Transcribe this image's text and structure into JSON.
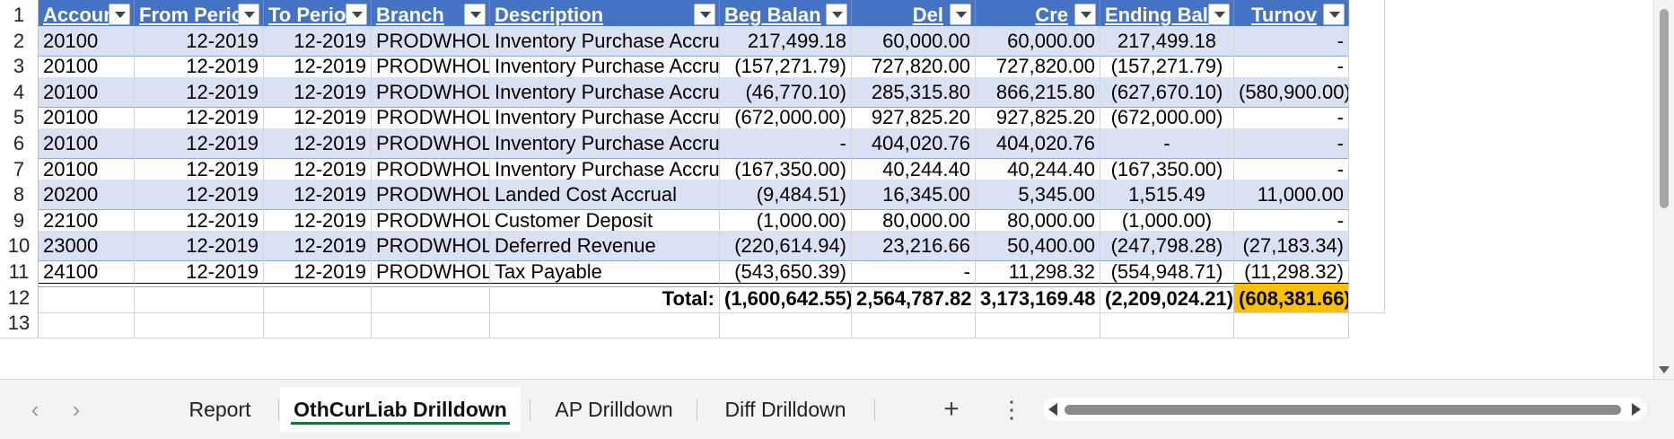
{
  "sheet": {
    "headers": [
      "Account",
      "From Period",
      "To Period",
      "Branch",
      "Description",
      "Beg Balan",
      "Del",
      "Cre",
      "Ending Balan",
      "Turnov"
    ],
    "rows": [
      {
        "num": "2",
        "account": "20100",
        "from": "12-2019",
        "to": "12-2019",
        "branch": "PRODWHOLE",
        "desc": "Inventory Purchase Accrual",
        "beg": "217,499.18",
        "debit": "60,000.00",
        "credit": "60,000.00",
        "ending": "217,499.18",
        "turnover": "-"
      },
      {
        "num": "3",
        "account": "20100",
        "from": "12-2019",
        "to": "12-2019",
        "branch": "PRODWHOLE",
        "desc": "Inventory Purchase Accrual",
        "beg": "(157,271.79)",
        "debit": "727,820.00",
        "credit": "727,820.00",
        "ending": "(157,271.79)",
        "turnover": "-"
      },
      {
        "num": "4",
        "account": "20100",
        "from": "12-2019",
        "to": "12-2019",
        "branch": "PRODWHOLE",
        "desc": "Inventory Purchase Accrual",
        "beg": "(46,770.10)",
        "debit": "285,315.80",
        "credit": "866,215.80",
        "ending": "(627,670.10)",
        "turnover": "(580,900.00)"
      },
      {
        "num": "5",
        "account": "20100",
        "from": "12-2019",
        "to": "12-2019",
        "branch": "PRODWHOLE",
        "desc": "Inventory Purchase Accrual",
        "beg": "(672,000.00)",
        "debit": "927,825.20",
        "credit": "927,825.20",
        "ending": "(672,000.00)",
        "turnover": "-"
      },
      {
        "num": "6",
        "account": "20100",
        "from": "12-2019",
        "to": "12-2019",
        "branch": "PRODWHOLE",
        "desc": "Inventory Purchase Accrual",
        "beg": "-",
        "debit": "404,020.76",
        "credit": "404,020.76",
        "ending": "-",
        "turnover": "-"
      },
      {
        "num": "7",
        "account": "20100",
        "from": "12-2019",
        "to": "12-2019",
        "branch": "PRODWHOLE",
        "desc": "Inventory Purchase Accrual",
        "beg": "(167,350.00)",
        "debit": "40,244.40",
        "credit": "40,244.40",
        "ending": "(167,350.00)",
        "turnover": "-"
      },
      {
        "num": "8",
        "account": "20200",
        "from": "12-2019",
        "to": "12-2019",
        "branch": "PRODWHOLE",
        "desc": "Landed Cost Accrual",
        "beg": "(9,484.51)",
        "debit": "16,345.00",
        "credit": "5,345.00",
        "ending": "1,515.49",
        "turnover": "11,000.00"
      },
      {
        "num": "9",
        "account": "22100",
        "from": "12-2019",
        "to": "12-2019",
        "branch": "PRODWHOLE",
        "desc": "Customer Deposit",
        "beg": "(1,000.00)",
        "debit": "80,000.00",
        "credit": "80,000.00",
        "ending": "(1,000.00)",
        "turnover": "-"
      },
      {
        "num": "10",
        "account": "23000",
        "from": "12-2019",
        "to": "12-2019",
        "branch": "PRODWHOLE",
        "desc": "Deferred Revenue",
        "beg": "(220,614.94)",
        "debit": "23,216.66",
        "credit": "50,400.00",
        "ending": "(247,798.28)",
        "turnover": "(27,183.34)"
      },
      {
        "num": "11",
        "account": "24100",
        "from": "12-2019",
        "to": "12-2019",
        "branch": "PRODWHOLE",
        "desc": "Tax Payable",
        "beg": "(543,650.39)",
        "debit": "-",
        "credit": "11,298.32",
        "ending": "(554,948.71)",
        "turnover": "(11,298.32)"
      }
    ],
    "total": {
      "num": "12",
      "label": "Total:",
      "beg": "(1,600,642.55)",
      "debit": "2,564,787.82",
      "credit": "3,173,169.48",
      "ending": "(2,209,024.21)",
      "turnover": "(608,381.66)"
    },
    "partial_row_num": "13",
    "header_row_num": "1"
  },
  "tabs": [
    "Report",
    "OthCurLiab Drilldown",
    "AP Drilldown",
    "Diff Drilldown"
  ],
  "active_tab": "OthCurLiab Drilldown",
  "nav": {
    "prev": "‹",
    "next": "›",
    "add": "+",
    "more": "⋮"
  },
  "colors": {
    "header": "#4472c4",
    "band": "#d9e1f2",
    "highlight": "#ffc000",
    "active_tab_underline": "#1e7145"
  }
}
